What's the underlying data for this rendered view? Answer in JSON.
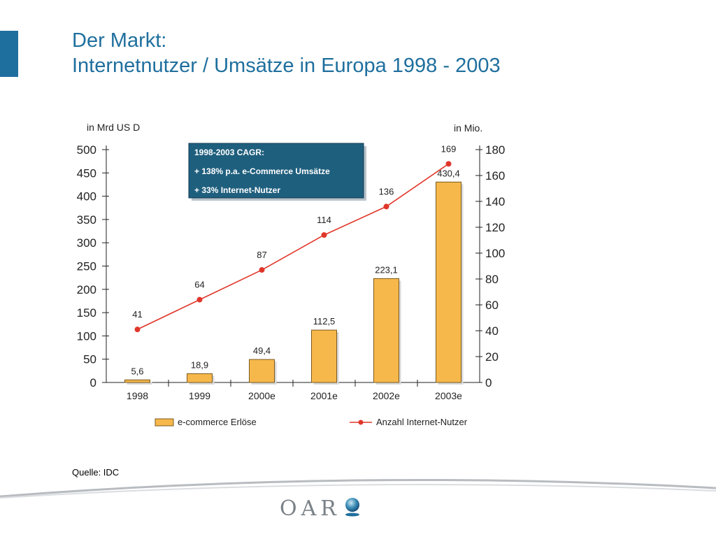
{
  "slide": {
    "title_line1": "Der Markt:",
    "title_line2": "Internetnutzer / Umsätze in Europa 1998 - 2003",
    "source": "Quelle: IDC",
    "logo_text": "OAR"
  },
  "colors": {
    "title": "#1f6f9e",
    "bar_fill": "#f7b84b",
    "bar_stroke": "#7a5a1e",
    "line": "#e0362a",
    "box_bg": "#1f5f7e"
  },
  "chart_data": {
    "type": "bar",
    "categories": [
      "1998",
      "1999",
      "2000e",
      "2001e",
      "2002e",
      "2003e"
    ],
    "y_left_unit": "in Mrd US D",
    "y_right_unit": "in Mio.",
    "ylim_left": [
      0,
      500
    ],
    "ylim_right": [
      0,
      180
    ],
    "left_ticks": [
      0,
      50,
      100,
      150,
      200,
      250,
      300,
      350,
      400,
      450,
      500
    ],
    "right_ticks": [
      0,
      20,
      40,
      60,
      80,
      100,
      120,
      140,
      160,
      180
    ],
    "series": [
      {
        "name": "e-commerce Erlöse",
        "kind": "bar",
        "axis": "left",
        "values": [
          5.6,
          18.9,
          49.4,
          112.5,
          223.1,
          430.4
        ],
        "labels": [
          "5,6",
          "18,9",
          "49,4",
          "112,5",
          "223,1",
          "430,4"
        ]
      },
      {
        "name": "Anzahl Internet-Nutzer",
        "kind": "line",
        "axis": "right",
        "values": [
          41,
          64,
          87,
          114,
          136,
          169
        ],
        "labels": [
          "41",
          "64",
          "87",
          "114",
          "136",
          "169"
        ]
      }
    ],
    "annotation": [
      "1998-2003 CAGR:",
      "+ 138% p.a. e-Commerce Umsätze",
      "+ 33% Internet-Nutzer"
    ],
    "legend_position": "bottom",
    "grid": false
  }
}
